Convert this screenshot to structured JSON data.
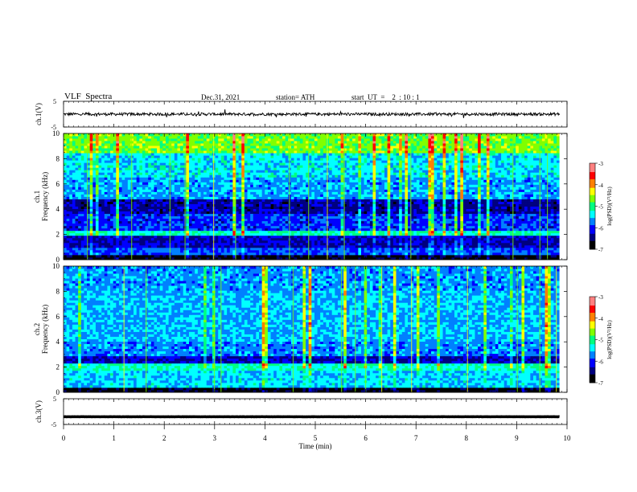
{
  "header": {
    "title": "VLF  Spectra",
    "date": "Dec.31, 2021",
    "station": "station= ATH",
    "start": "start  UT  =    2  : 10 : 1"
  },
  "chart_data": [
    {
      "type": "line",
      "name": "ch1-waveform",
      "ylabel": "ch.1(V)",
      "ylim": [
        -5,
        5
      ],
      "yticks": [
        "5",
        "-5"
      ],
      "xlim": [
        0,
        10
      ],
      "x_extent_min": 9.85,
      "approx_level": 0,
      "color": "#000000"
    },
    {
      "type": "heatmap",
      "name": "ch1-spectrogram",
      "ylabel_top": "ch.1",
      "ylabel": "Frequency  (kHz)",
      "ylim": [
        0,
        10
      ],
      "yticks": [
        "0",
        "2",
        "4",
        "6",
        "8",
        "10"
      ],
      "xlim": [
        0,
        10
      ],
      "x_extent_min": 9.85
    },
    {
      "type": "heatmap",
      "name": "ch2-spectrogram",
      "ylabel_top": "ch.2",
      "ylabel": "Frequency  (kHz)",
      "ylim": [
        0,
        10
      ],
      "yticks": [
        "0",
        "2",
        "4",
        "6",
        "8",
        "10"
      ],
      "xlim": [
        0,
        10
      ],
      "x_extent_min": 9.85
    },
    {
      "type": "line",
      "name": "ch3-waveform",
      "ylabel": "ch.3(V)",
      "ylim": [
        -5,
        5
      ],
      "yticks": [
        "5",
        "-5"
      ],
      "xlim": [
        0,
        10
      ],
      "x_extent_min": 9.85,
      "approx_level": -2,
      "color": "#000000"
    }
  ],
  "xaxis": {
    "label": "Time  (min)",
    "ticks": [
      "0",
      "1",
      "2",
      "3",
      "4",
      "5",
      "6",
      "7",
      "8",
      "9",
      "10"
    ]
  },
  "colorbar": {
    "label": "log(PSD)(V²/Hz)",
    "ticks": [
      "-3",
      "-4",
      "-5",
      "-6",
      "-7"
    ],
    "range": [
      -7,
      -3
    ],
    "colors": [
      "#000000",
      "#00007f",
      "#0000ff",
      "#0080ff",
      "#00ffff",
      "#00ff80",
      "#80ff00",
      "#ffff00",
      "#ff8000",
      "#ff0000",
      "#ff8080",
      "#ffffff"
    ]
  }
}
